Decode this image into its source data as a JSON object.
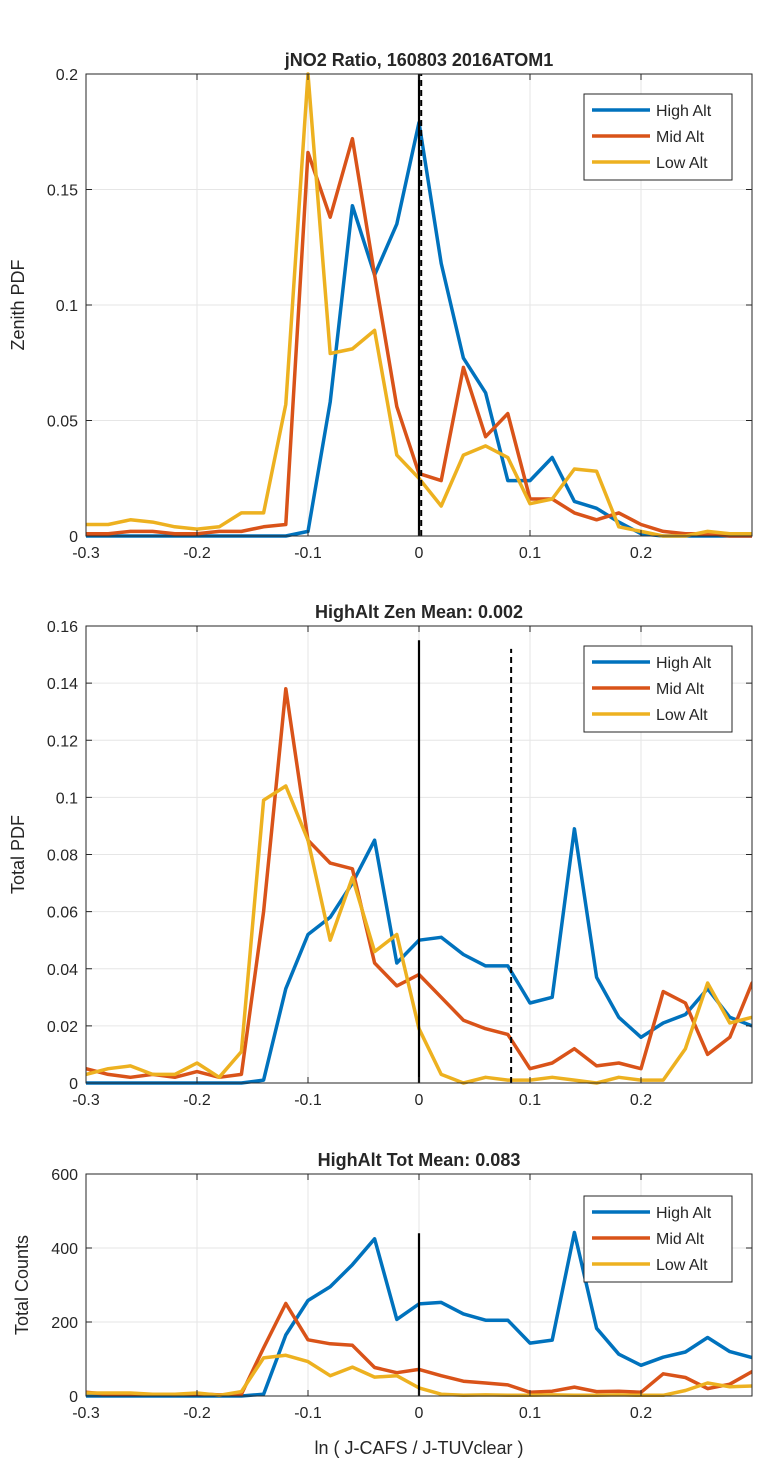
{
  "chart_data": [
    {
      "type": "line",
      "title": "jNO2 Ratio, 160803 2016ATOM1",
      "xlabel": "",
      "ylabel": "Zenith PDF",
      "xlim": [
        -0.3,
        0.3
      ],
      "ylim": [
        0,
        0.2
      ],
      "xticks": [
        -0.3,
        -0.2,
        -0.1,
        0,
        0.1,
        0.2
      ],
      "xtick_labels": [
        "-0.3",
        "-0.2",
        "-0.1",
        "0",
        "0.1",
        "0.2"
      ],
      "yticks": [
        0,
        0.05,
        0.1,
        0.15,
        0.2
      ],
      "ytick_labels": [
        "0",
        "0.05",
        "0.1",
        "0.15",
        "0.2"
      ],
      "grid": true,
      "legend_position": "top-right",
      "vlines": [
        {
          "x": 0,
          "style": "solid",
          "color": "#000000"
        },
        {
          "x": 0.002,
          "style": "dashed",
          "color": "#000000"
        }
      ],
      "x": [
        -0.3,
        -0.28,
        -0.26,
        -0.24,
        -0.22,
        -0.2,
        -0.18,
        -0.16,
        -0.14,
        -0.12,
        -0.1,
        -0.08,
        -0.06,
        -0.04,
        -0.02,
        0,
        0.02,
        0.04,
        0.06,
        0.08,
        0.1,
        0.12,
        0.14,
        0.16,
        0.18,
        0.2,
        0.22,
        0.24,
        0.26,
        0.28,
        0.3
      ],
      "series": [
        {
          "name": "High Alt",
          "color": "#0072BD",
          "values": [
            0,
            0,
            0,
            0,
            0,
            0,
            0,
            0,
            0,
            0,
            0.002,
            0.058,
            0.143,
            0.113,
            0.135,
            0.179,
            0.118,
            0.077,
            0.062,
            0.024,
            0.024,
            0.034,
            0.015,
            0.012,
            0.006,
            0.001,
            0,
            0,
            0,
            0,
            0
          ]
        },
        {
          "name": "Mid Alt",
          "color": "#D95319",
          "values": [
            0.001,
            0.001,
            0.002,
            0.002,
            0.001,
            0.001,
            0.002,
            0.002,
            0.004,
            0.005,
            0.166,
            0.138,
            0.172,
            0.113,
            0.056,
            0.027,
            0.024,
            0.073,
            0.043,
            0.053,
            0.016,
            0.016,
            0.01,
            0.007,
            0.01,
            0.005,
            0.002,
            0.001,
            0.001,
            0,
            0
          ]
        },
        {
          "name": "Low Alt",
          "color": "#EDB120",
          "values": [
            0.005,
            0.005,
            0.007,
            0.006,
            0.004,
            0.003,
            0.004,
            0.01,
            0.01,
            0.057,
            0.2,
            0.079,
            0.081,
            0.089,
            0.035,
            0.025,
            0.013,
            0.035,
            0.039,
            0.034,
            0.014,
            0.016,
            0.029,
            0.028,
            0.004,
            0.002,
            0,
            0,
            0.002,
            0.001,
            0.001
          ]
        }
      ]
    },
    {
      "type": "line",
      "title": "HighAlt Zen Mean: 0.002",
      "xlabel": "",
      "ylabel": "Total PDF",
      "xlim": [
        -0.3,
        0.3
      ],
      "ylim": [
        0,
        0.16
      ],
      "xticks": [
        -0.3,
        -0.2,
        -0.1,
        0,
        0.1,
        0.2
      ],
      "xtick_labels": [
        "-0.3",
        "-0.2",
        "-0.1",
        "0",
        "0.1",
        "0.2"
      ],
      "yticks": [
        0,
        0.02,
        0.04,
        0.06,
        0.08,
        0.1,
        0.12,
        0.14,
        0.16
      ],
      "ytick_labels": [
        "0",
        "0.02",
        "0.04",
        "0.06",
        "0.08",
        "0.1",
        "0.12",
        "0.14",
        "0.16"
      ],
      "grid": true,
      "legend_position": "top-right",
      "vlines": [
        {
          "x": 0,
          "style": "solid",
          "color": "#000000",
          "ymax": 0.155
        },
        {
          "x": 0.083,
          "style": "dashed",
          "color": "#000000",
          "ymax": 0.152
        }
      ],
      "x": [
        -0.3,
        -0.28,
        -0.26,
        -0.24,
        -0.22,
        -0.2,
        -0.18,
        -0.16,
        -0.14,
        -0.12,
        -0.1,
        -0.08,
        -0.06,
        -0.04,
        -0.02,
        0,
        0.02,
        0.04,
        0.06,
        0.08,
        0.1,
        0.12,
        0.14,
        0.16,
        0.18,
        0.2,
        0.22,
        0.24,
        0.26,
        0.28,
        0.3
      ],
      "series": [
        {
          "name": "High Alt",
          "color": "#0072BD",
          "values": [
            0,
            0,
            0,
            0,
            0,
            0,
            0,
            0,
            0.001,
            0.033,
            0.052,
            0.058,
            0.07,
            0.085,
            0.042,
            0.05,
            0.051,
            0.045,
            0.041,
            0.041,
            0.028,
            0.03,
            0.089,
            0.037,
            0.023,
            0.016,
            0.021,
            0.024,
            0.033,
            0.023,
            0.02
          ]
        },
        {
          "name": "Mid Alt",
          "color": "#D95319",
          "values": [
            0.005,
            0.003,
            0.002,
            0.003,
            0.002,
            0.004,
            0.002,
            0.003,
            0.06,
            0.138,
            0.085,
            0.077,
            0.075,
            0.042,
            0.034,
            0.038,
            0.03,
            0.022,
            0.019,
            0.017,
            0.005,
            0.007,
            0.012,
            0.006,
            0.007,
            0.005,
            0.032,
            0.028,
            0.01,
            0.016,
            0.035
          ]
        },
        {
          "name": "Low Alt",
          "color": "#EDB120",
          "values": [
            0.003,
            0.005,
            0.006,
            0.003,
            0.003,
            0.007,
            0.002,
            0.011,
            0.099,
            0.104,
            0.085,
            0.05,
            0.072,
            0.046,
            0.052,
            0.019,
            0.003,
            0,
            0.002,
            0.001,
            0.001,
            0.002,
            0.001,
            0,
            0.002,
            0.001,
            0.001,
            0.012,
            0.035,
            0.021,
            0.023
          ]
        }
      ]
    },
    {
      "type": "line",
      "title": "HighAlt Tot Mean: 0.083",
      "xlabel": "ln ( J-CAFS / J-TUVclear )",
      "ylabel": "Total Counts",
      "xlim": [
        -0.3,
        0.3
      ],
      "ylim": [
        0,
        600
      ],
      "xticks": [
        -0.3,
        -0.2,
        -0.1,
        0,
        0.1,
        0.2
      ],
      "xtick_labels": [
        "-0.3",
        "-0.2",
        "-0.1",
        "0",
        "0.1",
        "0.2"
      ],
      "yticks": [
        0,
        200,
        400,
        600
      ],
      "ytick_labels": [
        "0",
        "200",
        "400",
        "600"
      ],
      "grid": true,
      "legend_position": "top-right",
      "vlines": [
        {
          "x": 0,
          "style": "solid",
          "color": "#000000",
          "ymax": 440
        }
      ],
      "x": [
        -0.3,
        -0.28,
        -0.26,
        -0.24,
        -0.22,
        -0.2,
        -0.18,
        -0.16,
        -0.14,
        -0.12,
        -0.1,
        -0.08,
        -0.06,
        -0.04,
        -0.02,
        0,
        0.02,
        0.04,
        0.06,
        0.08,
        0.1,
        0.12,
        0.14,
        0.16,
        0.18,
        0.2,
        0.22,
        0.24,
        0.26,
        0.28,
        0.3
      ],
      "series": [
        {
          "name": "High Alt",
          "color": "#0072BD",
          "values": [
            0,
            0,
            0,
            0,
            0,
            0,
            0,
            0,
            5,
            165,
            258,
            295,
            355,
            425,
            207,
            249,
            253,
            222,
            205,
            205,
            143,
            151,
            442,
            183,
            113,
            83,
            105,
            119,
            158,
            120,
            104
          ]
        },
        {
          "name": "Mid Alt",
          "color": "#D95319",
          "values": [
            10,
            5,
            5,
            5,
            3,
            6,
            3,
            5,
            130,
            250,
            152,
            141,
            137,
            77,
            63,
            72,
            55,
            40,
            35,
            30,
            10,
            13,
            24,
            12,
            13,
            10,
            60,
            50,
            20,
            32,
            66
          ]
        },
        {
          "name": "Low Alt",
          "color": "#EDB120",
          "values": [
            8,
            8,
            8,
            5,
            5,
            8,
            2,
            12,
            103,
            110,
            93,
            55,
            78,
            51,
            55,
            22,
            5,
            2,
            3,
            2,
            2,
            3,
            2,
            2,
            3,
            2,
            2,
            15,
            35,
            25,
            27
          ]
        }
      ]
    }
  ]
}
